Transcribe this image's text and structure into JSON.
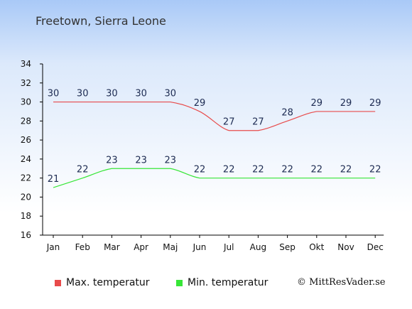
{
  "colors": {
    "max": "#e84b4b",
    "min": "#37e637",
    "label": "#1d2b52",
    "axis": "#000000"
  },
  "legend": {
    "max_label": "Max. temperatur",
    "min_label": "Min. temperatur"
  },
  "copyright": "© MittResVader.se",
  "chart_data": {
    "type": "line",
    "title": "Freetown, Sierra Leone",
    "categories": [
      "Jan",
      "Feb",
      "Mar",
      "Apr",
      "Maj",
      "Jun",
      "Jul",
      "Aug",
      "Sep",
      "Okt",
      "Nov",
      "Dec"
    ],
    "series": [
      {
        "name": "Max. temperatur",
        "values": [
          30,
          30,
          30,
          30,
          30,
          29,
          27,
          27,
          28,
          29,
          29,
          29
        ]
      },
      {
        "name": "Min. temperatur",
        "values": [
          21,
          22,
          23,
          23,
          23,
          22,
          22,
          22,
          22,
          22,
          22,
          22
        ]
      }
    ],
    "ylim": [
      16,
      34
    ],
    "yticks": [
      16,
      18,
      20,
      22,
      24,
      26,
      28,
      30,
      32,
      34
    ],
    "grid": false,
    "legend_position": "bottom"
  }
}
